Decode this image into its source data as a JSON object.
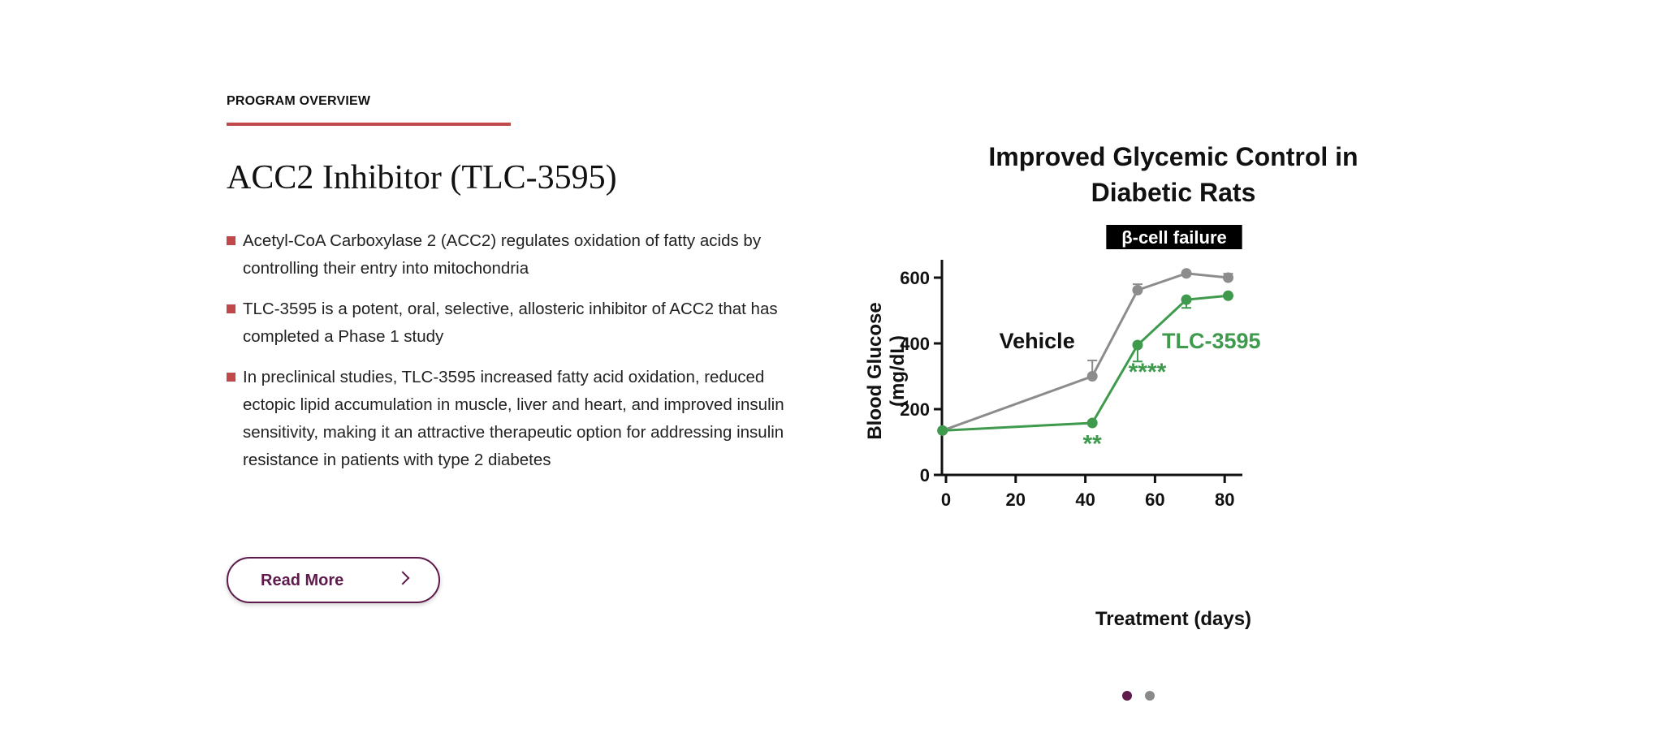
{
  "overview": {
    "eyebrow": "PROGRAM OVERVIEW",
    "title": "ACC2 Inhibitor (TLC-3595)",
    "bullets": [
      "Acetyl-CoA Carboxylase 2 (ACC2) regulates oxidation of fatty acids by controlling their entry into mitochondria",
      "TLC-3595 is a potent, oral, selective, allosteric inhibitor of ACC2 that has completed a Phase 1 study",
      "In preclinical studies, TLC-3595 increased fatty acid oxidation, reduced ectopic lipid accumulation in muscle, liver and heart, and improved insulin sensitivity, making it an attractive therapeutic option for addressing insulin resistance in patients with type 2 diabetes"
    ],
    "read_more": "Read More",
    "read_more_icon": "chevron-right-icon"
  },
  "colors": {
    "accent_red": "#c0474a",
    "brand_purple": "#5e1a4b",
    "vehicle": "#8c8c8c",
    "tlc": "#3f9a4e"
  },
  "carousel": {
    "count": 2,
    "active": 0
  },
  "chart_data": {
    "type": "line",
    "title_line1": "Improved Glycemic Control in",
    "title_line2": "Diabetic Rats",
    "xlabel": "Treatment (days)",
    "ylabel_line1": "Blood Glucose",
    "ylabel_line2": "(mg/dL)",
    "xlim": [
      -1,
      86
    ],
    "ylim": [
      0,
      650
    ],
    "xticks": [
      0,
      20,
      40,
      60,
      80
    ],
    "yticks": [
      0,
      200,
      400,
      600
    ],
    "band_label": "β-cell failure",
    "band_range": [
      46,
      85
    ],
    "series": [
      {
        "name": "Vehicle",
        "color": "#8c8c8c",
        "x": [
          -1,
          42,
          55,
          69,
          81
        ],
        "y": [
          135,
          300,
          562,
          613,
          600
        ],
        "err_upper": [
          null,
          348,
          580,
          null,
          612
        ],
        "err_lower": [
          null,
          null,
          null,
          null,
          null
        ]
      },
      {
        "name": "TLC-3595",
        "color": "#3f9a4e",
        "x": [
          -1,
          42,
          55,
          69,
          81
        ],
        "y": [
          135,
          158,
          395,
          533,
          545
        ],
        "err_upper": [
          null,
          null,
          null,
          null,
          null
        ],
        "err_lower": [
          null,
          null,
          345,
          508,
          null
        ]
      }
    ],
    "annotations": [
      {
        "text": "**",
        "x": 42,
        "y": 100,
        "color": "#3f9a4e"
      },
      {
        "text": "****",
        "x": 55,
        "y": 318,
        "color": "#3f9a4e"
      }
    ]
  }
}
